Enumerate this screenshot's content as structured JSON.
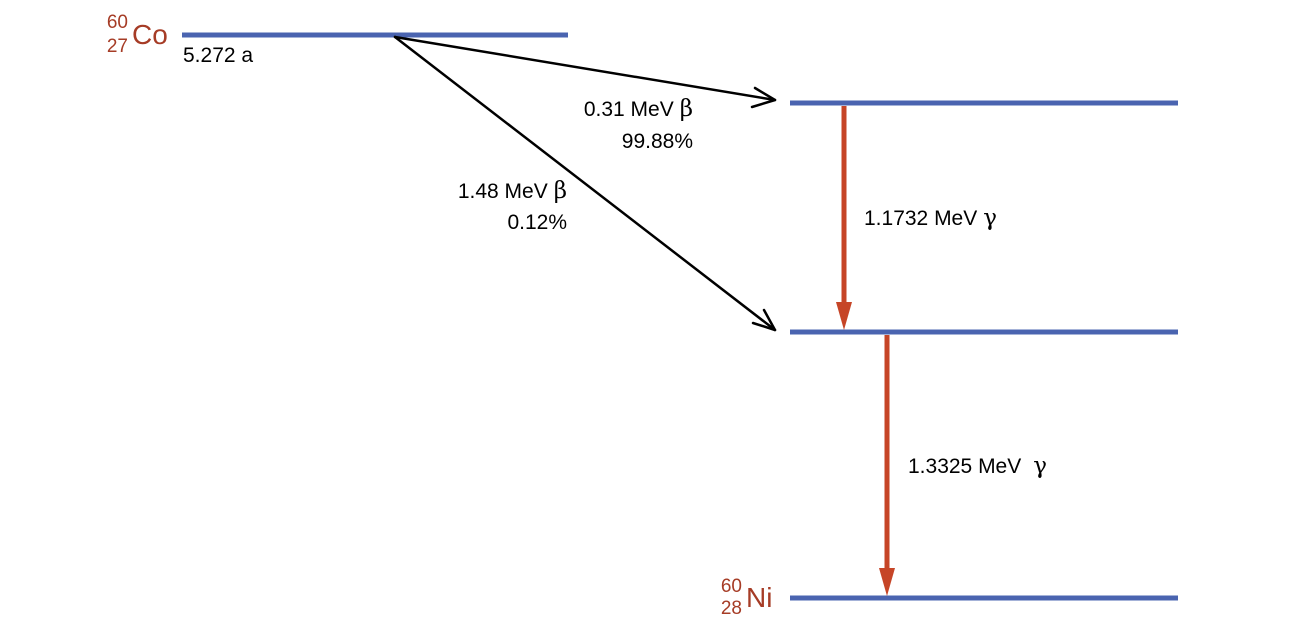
{
  "colors": {
    "level": "#4a64b0",
    "gamma_arrow": "#c64527",
    "beta_arrow": "#000000",
    "nuclide_label": "#a63c26"
  },
  "parent": {
    "mass": "60",
    "atomic": "27",
    "symbol": "Co",
    "half_life": "5.272 a"
  },
  "daughter": {
    "mass": "60",
    "atomic": "28",
    "symbol": "Ni"
  },
  "beta1": {
    "energy": "0.31 MeV",
    "particle": "β",
    "branch": "99.88%"
  },
  "beta2": {
    "energy": "1.48 MeV",
    "particle": "β",
    "branch": "0.12%"
  },
  "gamma1": {
    "energy": "1.1732 MeV",
    "particle": "γ"
  },
  "gamma2": {
    "energy": "1.3325 MeV",
    "particle": "γ"
  }
}
